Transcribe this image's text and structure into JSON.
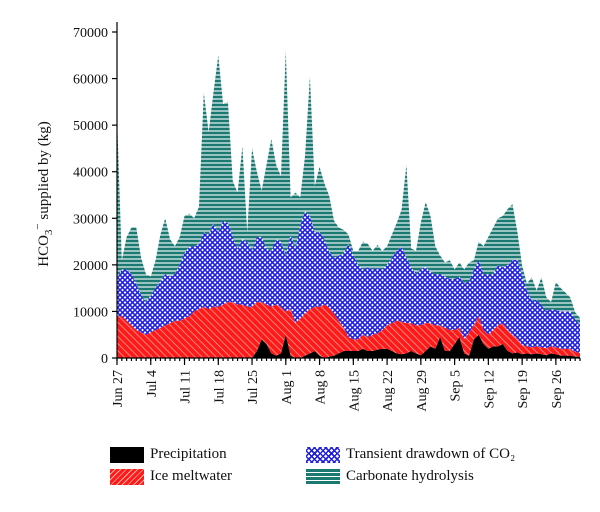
{
  "chart_data": {
    "type": "area",
    "stacked": true,
    "ylabel_main": "HCO",
    "ylabel_sub": "3",
    "ylabel_sup": "−",
    "ylabel_rest": " supplied by (kg)",
    "ylim": [
      0,
      70000
    ],
    "yticks": [
      "0",
      "10000",
      "20000",
      "30000",
      "40000",
      "50000",
      "60000",
      "70000"
    ],
    "ytick_values": [
      0,
      10000,
      20000,
      30000,
      40000,
      50000,
      60000,
      70000
    ],
    "xlim": [
      "2011-06-27",
      "2011-10-01"
    ],
    "xticks": [
      "Jun 27",
      "Jul 4",
      "Jul 11",
      "Jul 18",
      "Jul 25",
      "Aug 1",
      "Aug 8",
      "Aug 15",
      "Aug 22",
      "Aug 29",
      "Sep 5",
      "Sep 12",
      "Sep 19",
      "Sep 26"
    ],
    "xtick_dates": [
      "2011-06-27",
      "2011-07-04",
      "2011-07-11",
      "2011-07-18",
      "2011-07-25",
      "2011-08-01",
      "2011-08-08",
      "2011-08-15",
      "2011-08-22",
      "2011-08-29",
      "2011-09-05",
      "2011-09-12",
      "2011-09-19",
      "2011-09-26"
    ],
    "x": [
      "2011-06-27",
      "2011-06-28",
      "2011-06-29",
      "2011-06-30",
      "2011-07-01",
      "2011-07-02",
      "2011-07-03",
      "2011-07-04",
      "2011-07-05",
      "2011-07-06",
      "2011-07-07",
      "2011-07-08",
      "2011-07-09",
      "2011-07-10",
      "2011-07-11",
      "2011-07-12",
      "2011-07-13",
      "2011-07-14",
      "2011-07-15",
      "2011-07-16",
      "2011-07-17",
      "2011-07-18",
      "2011-07-19",
      "2011-07-20",
      "2011-07-21",
      "2011-07-22",
      "2011-07-23",
      "2011-07-24",
      "2011-07-25",
      "2011-07-26",
      "2011-07-27",
      "2011-07-28",
      "2011-07-29",
      "2011-07-30",
      "2011-07-31",
      "2011-08-01",
      "2011-08-02",
      "2011-08-03",
      "2011-08-04",
      "2011-08-05",
      "2011-08-06",
      "2011-08-07",
      "2011-08-08",
      "2011-08-09",
      "2011-08-10",
      "2011-08-11",
      "2011-08-12",
      "2011-08-13",
      "2011-08-14",
      "2011-08-15",
      "2011-08-16",
      "2011-08-17",
      "2011-08-18",
      "2011-08-19",
      "2011-08-20",
      "2011-08-21",
      "2011-08-22",
      "2011-08-23",
      "2011-08-24",
      "2011-08-25",
      "2011-08-26",
      "2011-08-27",
      "2011-08-28",
      "2011-08-29",
      "2011-08-30",
      "2011-08-31",
      "2011-09-01",
      "2011-09-02",
      "2011-09-03",
      "2011-09-04",
      "2011-09-05",
      "2011-09-06",
      "2011-09-07",
      "2011-09-08",
      "2011-09-09",
      "2011-09-10",
      "2011-09-11",
      "2011-09-12",
      "2011-09-13",
      "2011-09-14",
      "2011-09-15",
      "2011-09-16",
      "2011-09-17",
      "2011-09-18",
      "2011-09-19",
      "2011-09-20",
      "2011-09-21",
      "2011-09-22",
      "2011-09-23",
      "2011-09-24",
      "2011-09-25",
      "2011-09-26",
      "2011-09-27",
      "2011-09-28",
      "2011-09-29",
      "2011-09-30",
      "2011-10-01"
    ],
    "series": [
      {
        "name": "Precipitation",
        "color": "#000000",
        "pattern": "solid",
        "values": [
          0,
          0,
          0,
          0,
          0,
          0,
          0,
          0,
          0,
          0,
          0,
          0,
          0,
          0,
          0,
          0,
          0,
          0,
          0,
          0,
          0,
          0,
          0,
          0,
          0,
          0,
          0,
          0,
          0,
          1500,
          4000,
          3000,
          1000,
          500,
          1000,
          5000,
          500,
          0,
          0,
          500,
          1000,
          1500,
          500,
          0,
          300,
          500,
          1000,
          1500,
          1500,
          1500,
          1500,
          2000,
          1500,
          1500,
          1800,
          2000,
          2000,
          1500,
          1000,
          800,
          1000,
          1500,
          1000,
          600,
          1500,
          2500,
          2000,
          4500,
          1500,
          1500,
          3000,
          4500,
          1000,
          500,
          4000,
          5000,
          3000,
          2000,
          2500,
          2500,
          3000,
          1500,
          1000,
          1200,
          800,
          1000,
          800,
          1000,
          800,
          600,
          1000,
          800,
          500,
          500,
          500,
          300,
          300
        ]
      },
      {
        "name": "Ice meltwater",
        "color": "#ff1a1a",
        "pattern": "diagonal",
        "values": [
          9000,
          9000,
          8000,
          7000,
          6000,
          5500,
          5000,
          5500,
          6000,
          6500,
          7000,
          7500,
          8000,
          8000,
          8500,
          9000,
          10000,
          10500,
          11000,
          10500,
          11000,
          11000,
          11500,
          12000,
          12000,
          11500,
          11500,
          11000,
          11000,
          10500,
          8000,
          8500,
          10000,
          11000,
          10000,
          5000,
          10000,
          7500,
          8500,
          9000,
          9500,
          9500,
          10500,
          11500,
          10500,
          9000,
          7000,
          5000,
          3000,
          2500,
          2500,
          3000,
          3000,
          3500,
          3500,
          4000,
          5000,
          6000,
          7000,
          7000,
          6500,
          6000,
          6000,
          6500,
          6000,
          5000,
          5000,
          2500,
          5000,
          4500,
          3000,
          2000,
          3000,
          5000,
          3000,
          4000,
          3000,
          3000,
          3500,
          4500,
          4500,
          4500,
          4000,
          3000,
          2000,
          1500,
          1500,
          1500,
          1500,
          1500,
          1500,
          1500,
          1500,
          1500,
          1500,
          1000,
          800
        ]
      },
      {
        "name": "Transient drawdown of CO₂",
        "color": "#2222dd",
        "pattern": "crosshatch",
        "values": [
          8000,
          10000,
          11000,
          11000,
          10000,
          8000,
          7000,
          8000,
          9000,
          10000,
          11000,
          10000,
          10000,
          12000,
          14000,
          15000,
          14000,
          14000,
          16000,
          16000,
          18000,
          16000,
          18000,
          17000,
          14000,
          12000,
          14000,
          14000,
          12000,
          14000,
          14000,
          12000,
          12000,
          14000,
          14000,
          12000,
          16000,
          16000,
          20000,
          22000,
          20000,
          16000,
          16000,
          14000,
          12000,
          12000,
          14000,
          16000,
          20000,
          18000,
          16000,
          14000,
          15000,
          14000,
          14000,
          13000,
          13000,
          14000,
          15000,
          16000,
          14000,
          12000,
          11000,
          12000,
          12000,
          11000,
          11000,
          11000,
          11000,
          11000,
          11000,
          11000,
          12000,
          11000,
          12000,
          12000,
          12000,
          13000,
          12000,
          13000,
          12000,
          14000,
          16000,
          17000,
          15000,
          12000,
          10000,
          10000,
          9000,
          8000,
          8000,
          8000,
          8000,
          8000,
          8000,
          7000,
          6000
        ]
      },
      {
        "name": "Carbonate hydrolysis",
        "color": "#1a7a72",
        "pattern": "stripes",
        "values": [
          35000,
          2000,
          7000,
          10000,
          12000,
          8000,
          6000,
          4000,
          6000,
          10000,
          12000,
          8000,
          6000,
          6000,
          8000,
          7000,
          6000,
          8000,
          30000,
          22000,
          28000,
          38000,
          25000,
          26000,
          12000,
          12000,
          20000,
          2000,
          22000,
          14000,
          10000,
          18000,
          24000,
          16000,
          14000,
          44000,
          8000,
          12000,
          6000,
          12000,
          30000,
          10000,
          14000,
          12000,
          12000,
          8000,
          6000,
          5000,
          2000,
          1000,
          3000,
          6000,
          5000,
          4000,
          5000,
          4000,
          4000,
          5000,
          6000,
          8000,
          20000,
          4000,
          5000,
          10000,
          14000,
          12000,
          6000,
          4000,
          3000,
          4000,
          2000,
          3000,
          3000,
          4000,
          2000,
          4000,
          6000,
          8000,
          10000,
          10000,
          11000,
          12000,
          12000,
          6000,
          2000,
          1500,
          5000,
          2000,
          6000,
          3000,
          1500,
          6000,
          5000,
          4000,
          3000,
          1500,
          1500
        ]
      }
    ]
  }
}
